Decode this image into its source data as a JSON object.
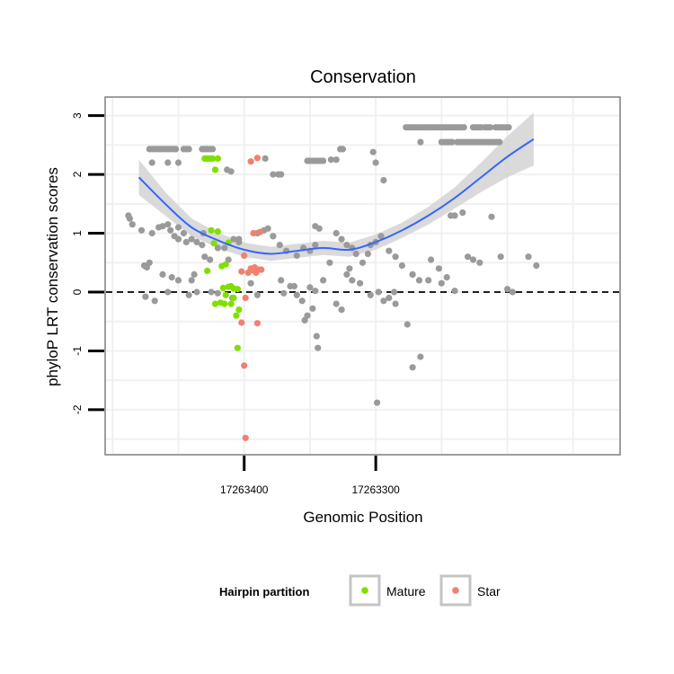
{
  "chart_data": {
    "type": "scatter",
    "title": "Conservation",
    "xlabel": "Genomic Position",
    "ylabel": "phyloP LRT conservation scores",
    "x_reversed": true,
    "xlim": [
      17263505,
      17263115
    ],
    "ylim": [
      -2.75,
      3.3
    ],
    "x_ticks": [
      {
        "value": 17263400,
        "label": "17263400"
      },
      {
        "value": 17263300,
        "label": "17263300"
      }
    ],
    "y_ticks": [
      {
        "value": 3,
        "label": "3"
      },
      {
        "value": 2,
        "label": "2"
      },
      {
        "value": 1,
        "label": "1"
      },
      {
        "value": 0,
        "label": "0"
      },
      {
        "value": -1,
        "label": "-1"
      },
      {
        "value": -2,
        "label": "-2"
      }
    ],
    "grid": true,
    "reference_line": {
      "y": 0,
      "style": "dashed"
    },
    "colors": {
      "other": "#9a9a9a",
      "mature": "#7fe000",
      "star": "#f08070",
      "smooth": "#3366ff",
      "band": "#d4d4d4",
      "panel_border": "#7f7f7f"
    },
    "legend": {
      "title": "Hairpin partition",
      "position": "bottom",
      "entries": [
        {
          "label": "Mature",
          "color": "#7fe000"
        },
        {
          "label": "Star",
          "color": "#f08070"
        }
      ]
    },
    "series": [
      {
        "name": "Mature",
        "color": "#7fe000",
        "points": [
          [
            17263430,
            2.27
          ],
          [
            17263428,
            2.27
          ],
          [
            17263426,
            2.27
          ],
          [
            17263424,
            2.27
          ],
          [
            17263420,
            2.27
          ],
          [
            17263422,
            2.08
          ],
          [
            17263425,
            1.05
          ],
          [
            17263420,
            1.03
          ],
          [
            17263423,
            0.83
          ],
          [
            17263412,
            0.84
          ],
          [
            17263428,
            0.36
          ],
          [
            17263417,
            0.44
          ],
          [
            17263414,
            0.47
          ],
          [
            17263416,
            0.07
          ],
          [
            17263412,
            0.09
          ],
          [
            17263410,
            0.1
          ],
          [
            17263408,
            0.06
          ],
          [
            17263405,
            0.05
          ],
          [
            17263414,
            -0.05
          ],
          [
            17263408,
            -0.1
          ],
          [
            17263418,
            -0.18
          ],
          [
            17263415,
            -0.2
          ],
          [
            17263422,
            -0.2
          ],
          [
            17263410,
            -0.2
          ],
          [
            17263404,
            -0.3
          ],
          [
            17263406,
            -0.4
          ],
          [
            17263405,
            -0.95
          ]
        ]
      },
      {
        "name": "Star",
        "color": "#f08070",
        "points": [
          [
            17263390,
            2.28
          ],
          [
            17263395,
            2.22
          ],
          [
            17263400,
            0.62
          ],
          [
            17263393,
            1.0
          ],
          [
            17263388,
            1.02
          ],
          [
            17263395,
            0.4
          ],
          [
            17263392,
            0.42
          ],
          [
            17263397,
            0.33
          ],
          [
            17263391,
            0.33
          ],
          [
            17263389,
            0.38
          ],
          [
            17263393,
            0.37
          ],
          [
            17263387,
            0.38
          ],
          [
            17263402,
            0.35
          ],
          [
            17263399,
            -0.1
          ],
          [
            17263402,
            -0.52
          ],
          [
            17263390,
            -0.53
          ],
          [
            17263400,
            -1.25
          ],
          [
            17263399,
            -2.48
          ]
        ]
      },
      {
        "name": "",
        "color": "#9a9a9a",
        "points": [
          [
            17263472,
            2.43
          ],
          [
            17263470,
            2.43
          ],
          [
            17263468,
            2.43
          ],
          [
            17263466,
            2.43
          ],
          [
            17263464,
            2.43
          ],
          [
            17263462,
            2.43
          ],
          [
            17263460,
            2.43
          ],
          [
            17263458,
            2.43
          ],
          [
            17263456,
            2.43
          ],
          [
            17263454,
            2.43
          ],
          [
            17263452,
            2.43
          ],
          [
            17263446,
            2.43
          ],
          [
            17263444,
            2.43
          ],
          [
            17263442,
            2.43
          ],
          [
            17263432,
            2.43
          ],
          [
            17263430,
            2.43
          ],
          [
            17263428,
            2.43
          ],
          [
            17263426,
            2.43
          ],
          [
            17263424,
            2.43
          ],
          [
            17263470,
            2.2
          ],
          [
            17263458,
            2.2
          ],
          [
            17263450,
            2.2
          ],
          [
            17263413,
            2.08
          ],
          [
            17263410,
            2.05
          ],
          [
            17263384,
            2.27
          ],
          [
            17263378,
            2.0
          ],
          [
            17263374,
            2.0
          ],
          [
            17263372,
            2.0
          ],
          [
            17263352,
            2.23
          ],
          [
            17263350,
            2.23
          ],
          [
            17263348,
            2.23
          ],
          [
            17263346,
            2.23
          ],
          [
            17263344,
            2.23
          ],
          [
            17263342,
            2.23
          ],
          [
            17263340,
            2.23
          ],
          [
            17263334,
            2.25
          ],
          [
            17263330,
            2.25
          ],
          [
            17263327,
            2.43
          ],
          [
            17263325,
            2.43
          ],
          [
            17263302,
            2.38
          ],
          [
            17263300,
            2.2
          ],
          [
            17263294,
            1.9
          ],
          [
            17263277,
            2.8
          ],
          [
            17263275,
            2.8
          ],
          [
            17263273,
            2.8
          ],
          [
            17263271,
            2.8
          ],
          [
            17263269,
            2.8
          ],
          [
            17263267,
            2.8
          ],
          [
            17263265,
            2.8
          ],
          [
            17263263,
            2.8
          ],
          [
            17263261,
            2.8
          ],
          [
            17263259,
            2.8
          ],
          [
            17263257,
            2.8
          ],
          [
            17263255,
            2.8
          ],
          [
            17263253,
            2.8
          ],
          [
            17263251,
            2.8
          ],
          [
            17263249,
            2.8
          ],
          [
            17263247,
            2.8
          ],
          [
            17263245,
            2.8
          ],
          [
            17263243,
            2.8
          ],
          [
            17263241,
            2.8
          ],
          [
            17263239,
            2.8
          ],
          [
            17263237,
            2.8
          ],
          [
            17263235,
            2.8
          ],
          [
            17263233,
            2.8
          ],
          [
            17263226,
            2.8
          ],
          [
            17263224,
            2.8
          ],
          [
            17263222,
            2.8
          ],
          [
            17263220,
            2.8
          ],
          [
            17263217,
            2.8
          ],
          [
            17263215,
            2.8
          ],
          [
            17263213,
            2.8
          ],
          [
            17263209,
            2.8
          ],
          [
            17263207,
            2.8
          ],
          [
            17263205,
            2.8
          ],
          [
            17263203,
            2.8
          ],
          [
            17263201,
            2.8
          ],
          [
            17263199,
            2.8
          ],
          [
            17263266,
            2.55
          ],
          [
            17263250,
            2.55
          ],
          [
            17263248,
            2.55
          ],
          [
            17263246,
            2.55
          ],
          [
            17263244,
            2.55
          ],
          [
            17263242,
            2.55
          ],
          [
            17263238,
            2.55
          ],
          [
            17263236,
            2.55
          ],
          [
            17263234,
            2.55
          ],
          [
            17263232,
            2.55
          ],
          [
            17263230,
            2.55
          ],
          [
            17263228,
            2.55
          ],
          [
            17263226,
            2.55
          ],
          [
            17263224,
            2.55
          ],
          [
            17263222,
            2.55
          ],
          [
            17263220,
            2.55
          ],
          [
            17263218,
            2.55
          ],
          [
            17263216,
            2.55
          ],
          [
            17263214,
            2.55
          ],
          [
            17263212,
            2.55
          ],
          [
            17263210,
            2.55
          ],
          [
            17263208,
            2.55
          ],
          [
            17263206,
            2.55
          ],
          [
            17263488,
            1.3
          ],
          [
            17263487,
            1.25
          ],
          [
            17263485,
            1.15
          ],
          [
            17263478,
            1.05
          ],
          [
            17263470,
            1.0
          ],
          [
            17263465,
            1.1
          ],
          [
            17263462,
            1.12
          ],
          [
            17263458,
            1.15
          ],
          [
            17263456,
            1.05
          ],
          [
            17263453,
            0.95
          ],
          [
            17263450,
            0.9
          ],
          [
            17263446,
            1.0
          ],
          [
            17263444,
            0.85
          ],
          [
            17263440,
            0.9
          ],
          [
            17263436,
            0.85
          ],
          [
            17263432,
            0.8
          ],
          [
            17263430,
            0.6
          ],
          [
            17263426,
            0.55
          ],
          [
            17263420,
            0.75
          ],
          [
            17263415,
            0.75
          ],
          [
            17263412,
            0.55
          ],
          [
            17263408,
            0.9
          ],
          [
            17263404,
            0.85
          ],
          [
            17263390,
            1.0
          ],
          [
            17263385,
            1.05
          ],
          [
            17263382,
            1.08
          ],
          [
            17263378,
            0.95
          ],
          [
            17263373,
            0.8
          ],
          [
            17263368,
            0.7
          ],
          [
            17263360,
            0.62
          ],
          [
            17263355,
            0.75
          ],
          [
            17263350,
            0.7
          ],
          [
            17263346,
            0.8
          ],
          [
            17263330,
            1.0
          ],
          [
            17263326,
            0.9
          ],
          [
            17263322,
            0.8
          ],
          [
            17263318,
            0.75
          ],
          [
            17263315,
            0.65
          ],
          [
            17263310,
            0.5
          ],
          [
            17263304,
            0.8
          ],
          [
            17263300,
            0.85
          ],
          [
            17263296,
            0.95
          ],
          [
            17263290,
            0.7
          ],
          [
            17263285,
            0.6
          ],
          [
            17263280,
            0.45
          ],
          [
            17263272,
            0.3
          ],
          [
            17263267,
            0.2
          ],
          [
            17263258,
            0.55
          ],
          [
            17263252,
            0.4
          ],
          [
            17263246,
            0.25
          ],
          [
            17263243,
            1.3
          ],
          [
            17263240,
            1.3
          ],
          [
            17263234,
            1.35
          ],
          [
            17263230,
            0.6
          ],
          [
            17263226,
            0.55
          ],
          [
            17263221,
            0.5
          ],
          [
            17263212,
            1.28
          ],
          [
            17263205,
            0.6
          ],
          [
            17263178,
            0.45
          ],
          [
            17263476,
            0.45
          ],
          [
            17263474,
            0.42
          ],
          [
            17263472,
            0.5
          ],
          [
            17263462,
            0.3
          ],
          [
            17263458,
            0.0
          ],
          [
            17263450,
            0.2
          ],
          [
            17263440,
            0.2
          ],
          [
            17263436,
            0.0
          ],
          [
            17263475,
            -0.08
          ],
          [
            17263468,
            -0.15
          ],
          [
            17263455,
            0.25
          ],
          [
            17263442,
            -0.05
          ],
          [
            17263438,
            0.3
          ],
          [
            17263425,
            0.0
          ],
          [
            17263420,
            -0.02
          ],
          [
            17263395,
            0.15
          ],
          [
            17263390,
            -0.05
          ],
          [
            17263372,
            0.2
          ],
          [
            17263365,
            0.1
          ],
          [
            17263360,
            -0.05
          ],
          [
            17263350,
            0.08
          ],
          [
            17263346,
            0.02
          ],
          [
            17263340,
            0.2
          ],
          [
            17263335,
            0.5
          ],
          [
            17263330,
            -0.2
          ],
          [
            17263326,
            -0.3
          ],
          [
            17263322,
            0.3
          ],
          [
            17263318,
            0.2
          ],
          [
            17263312,
            0.15
          ],
          [
            17263304,
            -0.05
          ],
          [
            17263298,
            0.0
          ],
          [
            17263294,
            -0.15
          ],
          [
            17263290,
            -0.1
          ],
          [
            17263285,
            -0.2
          ],
          [
            17263276,
            -0.55
          ],
          [
            17263272,
            -1.28
          ],
          [
            17263266,
            -1.1
          ],
          [
            17263352,
            -0.4
          ],
          [
            17263345,
            -0.75
          ],
          [
            17263344,
            -0.95
          ],
          [
            17263299,
            -1.88
          ],
          [
            17263348,
            -0.28
          ],
          [
            17263354,
            -0.48
          ],
          [
            17263356,
            -0.15
          ],
          [
            17263362,
            0.1
          ],
          [
            17263370,
            -0.02
          ],
          [
            17263409,
            -0.1
          ],
          [
            17263286,
            0.0
          ],
          [
            17263272,
            0.3
          ],
          [
            17263260,
            0.2
          ],
          [
            17263250,
            0.15
          ],
          [
            17263240,
            0.02
          ],
          [
            17263200,
            0.05
          ],
          [
            17263196,
            0.0
          ],
          [
            17263184,
            0.6
          ],
          [
            17263450,
            1.1
          ],
          [
            17263431,
            1.0
          ],
          [
            17263404,
            0.9
          ],
          [
            17263378,
            0.95
          ],
          [
            17263346,
            1.12
          ],
          [
            17263343,
            1.08
          ],
          [
            17263320,
            0.4
          ],
          [
            17263306,
            0.65
          ]
        ]
      }
    ],
    "smooth": {
      "x": [
        17263480,
        17263460,
        17263440,
        17263420,
        17263400,
        17263380,
        17263360,
        17263340,
        17263320,
        17263300,
        17263280,
        17263260,
        17263240,
        17263220,
        17263200,
        17263180
      ],
      "y": [
        1.95,
        1.5,
        1.1,
        0.88,
        0.72,
        0.65,
        0.7,
        0.75,
        0.72,
        0.85,
        1.05,
        1.3,
        1.6,
        1.95,
        2.3,
        2.6
      ],
      "band": [
        0.3,
        0.2,
        0.15,
        0.13,
        0.12,
        0.12,
        0.12,
        0.12,
        0.12,
        0.13,
        0.13,
        0.15,
        0.18,
        0.25,
        0.35,
        0.45
      ]
    }
  }
}
